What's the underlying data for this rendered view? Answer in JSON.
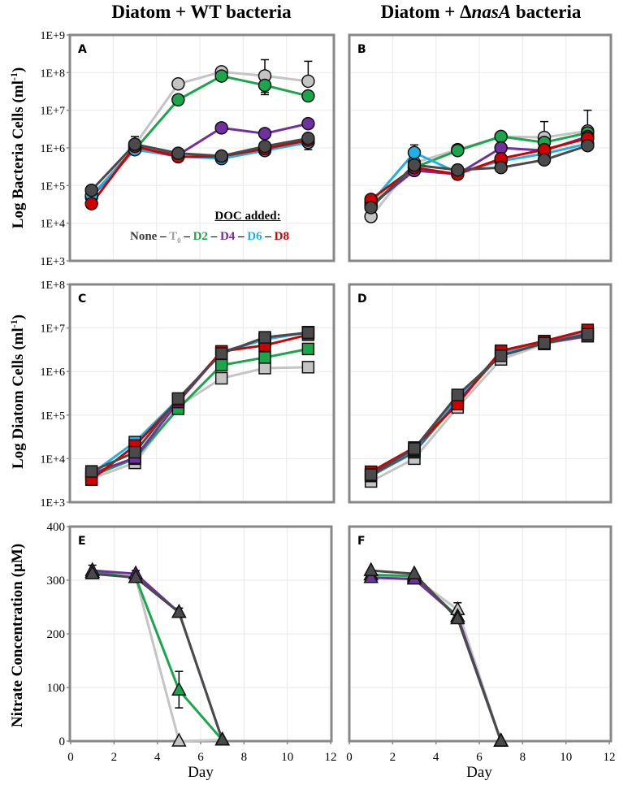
{
  "titles": {
    "left": "Diatom + WT bacteria",
    "right_prefix": "Diatom + ",
    "right_delta": "Δ",
    "right_gene": "nasA",
    "right_suffix": " bacteria"
  },
  "y_titles": {
    "bacteria": "Log Bacteria Cells (ml",
    "diatom": "Log Diatom Cells (ml",
    "unit_exp": "-1",
    "close": ")",
    "nitrate": "Nitrate Concentration (µM)"
  },
  "x_title": "Day",
  "legend": {
    "header": "DOC added:",
    "sep": " – ",
    "items": [
      {
        "label": "None",
        "sub": "",
        "color": "#3a3a3a"
      },
      {
        "label": "T",
        "sub": "0",
        "color": "#a0a0a0"
      },
      {
        "label": "D2",
        "sub": "",
        "color": "#1aa64a"
      },
      {
        "label": "D4",
        "sub": "",
        "color": "#7030a0"
      },
      {
        "label": "D6",
        "sub": "",
        "color": "#1fb0e8"
      },
      {
        "label": "D8",
        "sub": "",
        "color": "#d00000"
      }
    ]
  },
  "colors": {
    "None": "#4a4a4a",
    "T0": "#c4c4c4",
    "D2": "#1aa64a",
    "D4": "#7030a0",
    "D6": "#1fb0e8",
    "D8": "#d00000"
  },
  "chart_data": [
    {
      "panel": "A",
      "type": "line",
      "marker": "circle",
      "yscale": "log",
      "ylim": [
        1000.0,
        1000000000.0
      ],
      "yticks": [
        "1E+3",
        "1E+4",
        "1E+5",
        "1E+6",
        "1E+7",
        "1E+8",
        "1E+9"
      ],
      "x": [
        1,
        3,
        5,
        7,
        9,
        11
      ],
      "xlim": [
        0,
        12
      ],
      "series": [
        {
          "name": "T0",
          "values": [
            50000,
            1200000,
            50000000,
            105000000,
            82000000,
            59000000
          ]
        },
        {
          "name": "D2",
          "values": [
            50000,
            900000,
            19000000,
            81000000,
            46000000,
            24000000
          ]
        },
        {
          "name": "D4",
          "values": [
            50000,
            1000000,
            650000,
            3400000,
            2400000,
            4400000
          ]
        },
        {
          "name": "D6",
          "values": [
            55000,
            900000,
            600000,
            520000,
            850000,
            1400000
          ]
        },
        {
          "name": "D8",
          "values": [
            33000,
            1100000,
            580000,
            600000,
            950000,
            1600000
          ]
        },
        {
          "name": "None",
          "values": [
            75000,
            1250000,
            720000,
            610000,
            1100000,
            1800000
          ]
        }
      ],
      "error_bars": [
        {
          "series": "None",
          "x": 3,
          "low": 800000,
          "high": 2000000
        },
        {
          "series": "T0",
          "x": 9,
          "low": 30000000,
          "high": 220000000
        },
        {
          "series": "D2",
          "x": 9,
          "low": 26000000,
          "high": 46000000
        },
        {
          "series": "T0",
          "x": 11,
          "low": 59000000,
          "high": 200000000
        },
        {
          "series": "D2",
          "x": 11,
          "low": 20000000,
          "high": 24000000
        },
        {
          "series": "D6",
          "x": 11,
          "low": 900000,
          "high": 1400000
        }
      ]
    },
    {
      "panel": "B",
      "type": "line",
      "marker": "circle",
      "yscale": "log",
      "ylim": [
        1000.0,
        1000000000.0
      ],
      "yticks": [],
      "x": [
        1,
        3,
        5,
        7,
        9,
        11
      ],
      "xlim": [
        0,
        12
      ],
      "series": [
        {
          "name": "T0",
          "values": [
            15000,
            400000,
            900000,
            2000000,
            1900000,
            2800000
          ]
        },
        {
          "name": "D2",
          "values": [
            30000,
            300000,
            850000,
            2000000,
            1400000,
            2500000
          ]
        },
        {
          "name": "D4",
          "values": [
            30000,
            250000,
            200000,
            1000000,
            850000,
            2000000
          ]
        },
        {
          "name": "D6",
          "values": [
            35000,
            750000,
            220000,
            450000,
            700000,
            1300000
          ]
        },
        {
          "name": "D8",
          "values": [
            43000,
            300000,
            200000,
            520000,
            900000,
            1800000
          ]
        },
        {
          "name": "None",
          "values": [
            26000,
            350000,
            260000,
            300000,
            480000,
            1150000
          ]
        }
      ],
      "error_bars": [
        {
          "series": "D6",
          "x": 3,
          "low": 750000,
          "high": 1200000
        },
        {
          "series": "T0",
          "x": 1,
          "low": 11000,
          "high": 15000
        },
        {
          "series": "T0",
          "x": 9,
          "low": 1900000,
          "high": 5000000
        },
        {
          "series": "T0",
          "x": 11,
          "low": 2800000,
          "high": 10000000
        }
      ]
    },
    {
      "panel": "C",
      "type": "line",
      "marker": "square",
      "yscale": "log",
      "ylim": [
        1000.0,
        100000000.0
      ],
      "yticks": [
        "1E+3",
        "1E+4",
        "1E+5",
        "1E+6",
        "1E+7",
        "1E+8"
      ],
      "x": [
        1,
        3,
        5,
        7,
        9,
        11
      ],
      "xlim": [
        0,
        12
      ],
      "series": [
        {
          "name": "T0",
          "values": [
            3500,
            8000,
            160000,
            700000,
            1200000,
            1260000
          ]
        },
        {
          "name": "D2",
          "values": [
            4000,
            10000,
            140000,
            1400000,
            2100000,
            3300000
          ]
        },
        {
          "name": "D4",
          "values": [
            4500,
            10500,
            200000,
            2800000,
            5500000,
            8000000
          ]
        },
        {
          "name": "D6",
          "values": [
            4500,
            24000,
            230000,
            2700000,
            5500000,
            8000000
          ]
        },
        {
          "name": "D8",
          "values": [
            3300,
            20000,
            220000,
            2900000,
            4000000,
            7000000
          ]
        },
        {
          "name": "None",
          "values": [
            5100,
            14000,
            240000,
            2600000,
            6100000,
            7800000
          ]
        }
      ],
      "error_bars": []
    },
    {
      "panel": "D",
      "type": "line",
      "marker": "square",
      "yscale": "log",
      "ylim": [
        1000.0,
        100000000.0
      ],
      "yticks": [],
      "x": [
        1,
        3,
        5,
        7,
        9,
        11
      ],
      "xlim": [
        0,
        12
      ],
      "series": [
        {
          "name": "T0",
          "values": [
            3000,
            10000,
            150000,
            1900000,
            4300000,
            6500000
          ]
        },
        {
          "name": "D2",
          "values": [
            4000,
            14000,
            200000,
            2500000,
            4500000,
            7500000
          ]
        },
        {
          "name": "D4",
          "values": [
            4200,
            15000,
            220000,
            2600000,
            4500000,
            6500000
          ]
        },
        {
          "name": "D6",
          "values": [
            4500,
            16000,
            250000,
            2700000,
            4600000,
            8000000
          ]
        },
        {
          "name": "D8",
          "values": [
            5000,
            18000,
            180000,
            3000000,
            5000000,
            9000000
          ]
        },
        {
          "name": "None",
          "values": [
            4300,
            17000,
            290000,
            2300000,
            4500000,
            7200000
          ]
        }
      ],
      "error_bars": [
        {
          "series": "None",
          "x": 1,
          "low": 3500,
          "high": 6500
        }
      ]
    },
    {
      "panel": "E",
      "type": "line",
      "marker": "triangle",
      "yscale": "linear",
      "ylim": [
        0,
        400
      ],
      "yticks": [
        "0",
        "100",
        "200",
        "300",
        "400"
      ],
      "x": [
        1,
        3,
        5,
        7
      ],
      "xlim": [
        0,
        12
      ],
      "xticks": [
        "0",
        "2",
        "4",
        "6",
        "8",
        "10",
        "12"
      ],
      "series": [
        {
          "name": "T0",
          "values": [
            315,
            305,
            0,
            2
          ]
        },
        {
          "name": "D2",
          "values": [
            315,
            305,
            95,
            2
          ]
        },
        {
          "name": "D4",
          "values": [
            318,
            312,
            240,
            2
          ]
        },
        {
          "name": "None",
          "values": [
            312,
            305,
            240,
            2
          ]
        }
      ],
      "error_bars": [
        {
          "series": "None",
          "x": 1,
          "low": 305,
          "high": 328
        },
        {
          "series": "None",
          "x": 3,
          "low": 298,
          "high": 318
        },
        {
          "series": "D2",
          "x": 5,
          "low": 62,
          "high": 130
        },
        {
          "series": "None",
          "x": 5,
          "low": 232,
          "high": 248
        }
      ]
    },
    {
      "panel": "F",
      "type": "line",
      "marker": "triangle",
      "yscale": "linear",
      "ylim": [
        0,
        400
      ],
      "yticks": [],
      "x": [
        1,
        3,
        5,
        7
      ],
      "xlim": [
        0,
        12
      ],
      "xticks": [
        "0",
        "2",
        "4",
        "6",
        "8",
        "10",
        "12"
      ],
      "series": [
        {
          "name": "T0",
          "values": [
            310,
            305,
            245,
            0
          ]
        },
        {
          "name": "D2",
          "values": [
            310,
            308,
            232,
            0
          ]
        },
        {
          "name": "D4",
          "values": [
            305,
            302,
            232,
            0
          ]
        },
        {
          "name": "None",
          "values": [
            318,
            312,
            228,
            0
          ]
        }
      ],
      "error_bars": [
        {
          "series": "T0",
          "x": 5,
          "low": 235,
          "high": 258
        }
      ]
    }
  ]
}
